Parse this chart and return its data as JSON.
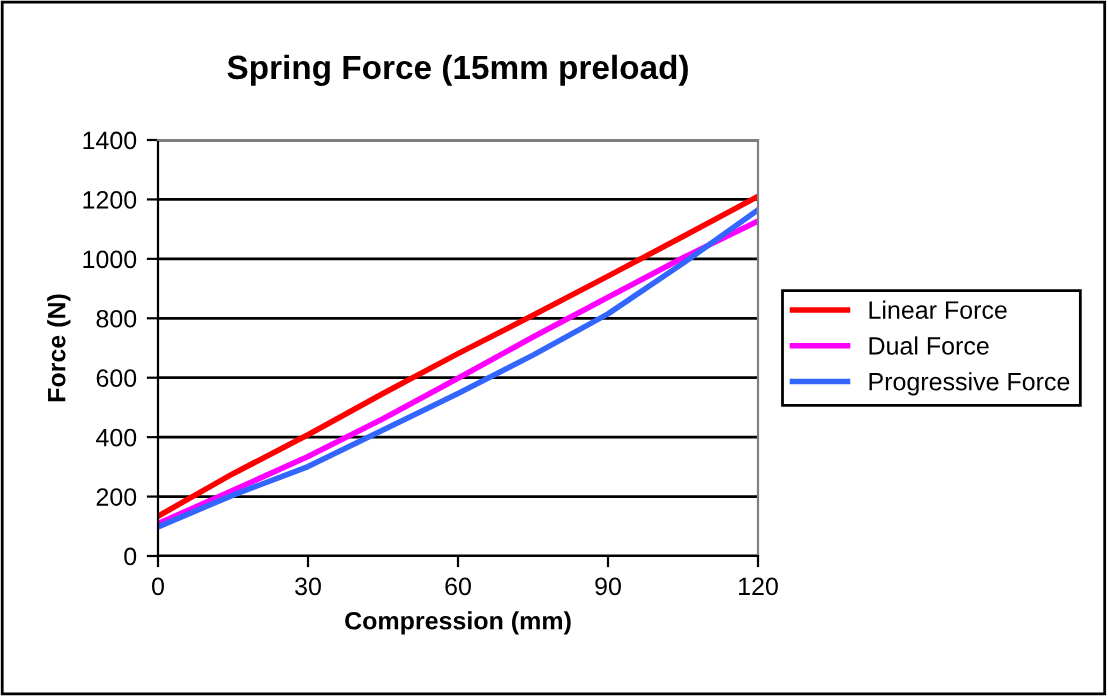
{
  "chart_data": {
    "type": "line",
    "title": "Spring Force (15mm preload)",
    "xlabel": "Compression (mm)",
    "ylabel": "Force (N)",
    "x": [
      0,
      15,
      30,
      45,
      60,
      75,
      90,
      105,
      120
    ],
    "series": [
      {
        "name": "Linear Force",
        "color": "#ff0000",
        "values": [
          134,
          277,
          408,
          547,
          681,
          810,
          942,
          1075,
          1210
        ]
      },
      {
        "name": "Dual Force",
        "color": "#ff00ff",
        "values": [
          109,
          221,
          335,
          462,
          598,
          737,
          871,
          1004,
          1127
        ]
      },
      {
        "name": "Progressive Force",
        "color": "#3366ff",
        "values": [
          98,
          205,
          301,
          424,
          547,
          676,
          815,
          985,
          1165
        ]
      }
    ],
    "xlim": [
      0,
      120
    ],
    "xticks": [
      0,
      30,
      60,
      90,
      120
    ],
    "ylim": [
      0,
      1400
    ],
    "yticks": [
      0,
      200,
      400,
      600,
      800,
      1000,
      1200,
      1400
    ],
    "grid": "y",
    "legend": "right",
    "marker": "none",
    "line_style": "solid"
  }
}
